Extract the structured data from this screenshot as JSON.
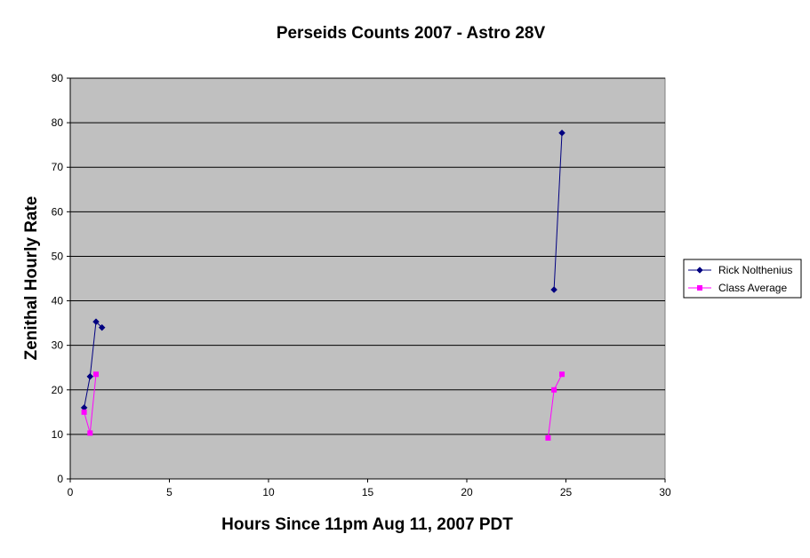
{
  "chart_data": {
    "type": "scatter",
    "title": "Perseids Counts 2007 - Astro 28V",
    "xlabel": "Hours Since 11pm Aug 11, 2007 PDT",
    "ylabel": "Zenithal Hourly Rate",
    "xlim": [
      0,
      30
    ],
    "ylim": [
      0,
      90
    ],
    "x_ticks": [
      "0",
      "5",
      "10",
      "15",
      "20",
      "25",
      "30"
    ],
    "y_ticks": [
      "0",
      "10",
      "20",
      "30",
      "40",
      "50",
      "60",
      "70",
      "80",
      "90"
    ],
    "grid": "horizontal",
    "plot_background": "#c0c0c0",
    "legend_position": "right",
    "series": [
      {
        "name": "Rick Nolthenius",
        "color": "#000080",
        "marker": "diamond",
        "points": [
          [
            0.7,
            16
          ],
          [
            1.0,
            23
          ],
          [
            1.3,
            35.3
          ],
          [
            1.6,
            34
          ],
          [
            24.4,
            42.5
          ],
          [
            24.8,
            77.7
          ]
        ],
        "segments": [
          [
            0,
            4
          ],
          [
            4,
            6
          ]
        ]
      },
      {
        "name": "Class Average",
        "color": "#ff00ff",
        "marker": "square",
        "points": [
          [
            0.7,
            15
          ],
          [
            1.0,
            10.3
          ],
          [
            1.3,
            23.5
          ],
          [
            24.1,
            9.2
          ],
          [
            24.4,
            20
          ],
          [
            24.8,
            23.5
          ]
        ],
        "segments": [
          [
            0,
            3
          ],
          [
            3,
            6
          ]
        ]
      }
    ]
  }
}
